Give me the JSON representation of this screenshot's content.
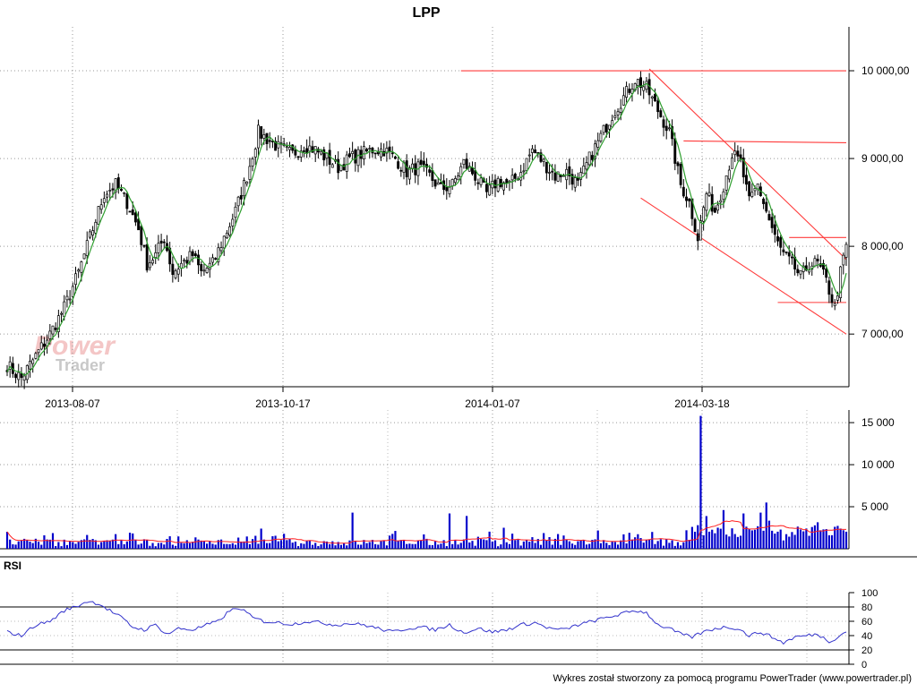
{
  "chart_data": {
    "type": "candlestick",
    "title": "LPP",
    "footer": "Wykres został stworzony za pomocą programu PowerTrader (www.powertrader.pl)",
    "watermark": {
      "line1": "Power",
      "line2": "Trader"
    },
    "x_tick_labels": [
      "2013-08-07",
      "2013-10-17",
      "2014-01-07",
      "2014-03-18"
    ],
    "price_panel": {
      "y_tick_labels": [
        "10 000,00",
        "9 000,00",
        "8 000,00",
        "7 000,00"
      ],
      "y_tick_values": [
        10000,
        9000,
        8000,
        7000
      ],
      "ylim": [
        6400,
        10500
      ],
      "series": [
        {
          "name": "LPP",
          "kind": "ohlc",
          "color_up": "#ffffff",
          "color_down": "#000000"
        },
        {
          "kind": "moving_average",
          "color": "#2e9e2e"
        }
      ],
      "close_anchors": [
        [
          0,
          6650
        ],
        [
          3,
          6550
        ],
        [
          5,
          6500
        ],
        [
          10,
          6750
        ],
        [
          15,
          7000
        ],
        [
          20,
          7300
        ],
        [
          25,
          7700
        ],
        [
          30,
          8200
        ],
        [
          34,
          8600
        ],
        [
          38,
          8700
        ],
        [
          42,
          8500
        ],
        [
          46,
          8200
        ],
        [
          49,
          7800
        ],
        [
          52,
          7900
        ],
        [
          55,
          8100
        ],
        [
          58,
          7700
        ],
        [
          61,
          7800
        ],
        [
          65,
          7900
        ],
        [
          68,
          7700
        ],
        [
          72,
          7800
        ],
        [
          76,
          8100
        ],
        [
          80,
          8400
        ],
        [
          84,
          8800
        ],
        [
          88,
          9300
        ],
        [
          92,
          9200
        ],
        [
          96,
          9100
        ],
        [
          100,
          9050
        ],
        [
          104,
          9150
        ],
        [
          108,
          9100
        ],
        [
          112,
          9000
        ],
        [
          116,
          8900
        ],
        [
          120,
          9000
        ],
        [
          124,
          9050
        ],
        [
          128,
          9100
        ],
        [
          132,
          9100
        ],
        [
          136,
          9000
        ],
        [
          140,
          8850
        ],
        [
          144,
          8900
        ],
        [
          148,
          8800
        ],
        [
          152,
          8650
        ],
        [
          156,
          8700
        ],
        [
          160,
          8950
        ],
        [
          164,
          8800
        ],
        [
          168,
          8600
        ],
        [
          172,
          8750
        ],
        [
          176,
          8700
        ],
        [
          180,
          8850
        ],
        [
          184,
          9100
        ],
        [
          188,
          8950
        ],
        [
          192,
          8800
        ],
        [
          196,
          8850
        ],
        [
          200,
          8700
        ],
        [
          204,
          9000
        ],
        [
          208,
          9250
        ],
        [
          212,
          9500
        ],
        [
          216,
          9700
        ],
        [
          220,
          9900
        ],
        [
          224,
          9800
        ],
        [
          228,
          9550
        ],
        [
          232,
          9300
        ],
        [
          236,
          8700
        ],
        [
          239,
          8500
        ],
        [
          242,
          8100
        ],
        [
          245,
          8600
        ],
        [
          248,
          8400
        ],
        [
          251,
          8700
        ],
        [
          254,
          9050
        ],
        [
          257,
          8950
        ],
        [
          260,
          8500
        ],
        [
          263,
          8700
        ],
        [
          266,
          8400
        ],
        [
          269,
          8100
        ],
        [
          272,
          7900
        ],
        [
          275,
          7800
        ],
        [
          278,
          7650
        ],
        [
          281,
          7800
        ],
        [
          284,
          7800
        ],
        [
          287,
          7600
        ],
        [
          290,
          7300
        ],
        [
          292,
          7700
        ],
        [
          294,
          8000
        ]
      ],
      "trend_lines": [
        {
          "kind": "resistance",
          "from": [
            159,
            10000
          ],
          "to": [
            294,
            10000
          ]
        },
        {
          "kind": "resistance",
          "from": [
            237,
            9200
          ],
          "to": [
            294,
            9180
          ]
        },
        {
          "kind": "channel-upper",
          "from": [
            225,
            10020
          ],
          "to": [
            294,
            7850
          ]
        },
        {
          "kind": "channel-lower",
          "from": [
            222,
            8550
          ],
          "to": [
            294,
            7000
          ]
        },
        {
          "kind": "resistance",
          "from": [
            274,
            8100
          ],
          "to": [
            294,
            8100
          ]
        },
        {
          "kind": "support",
          "from": [
            270,
            7360
          ],
          "to": [
            294,
            7360
          ]
        }
      ],
      "line_color": "#ff3b3b"
    },
    "volume_panel": {
      "y_tick_labels": [
        "15 000",
        "10 000",
        "5 000"
      ],
      "y_tick_values": [
        15000,
        10000,
        5000
      ],
      "ylim": [
        0,
        16500
      ],
      "bar_color": "#0000cc",
      "avg_color": "#ff2020",
      "spikes": [
        {
          "x": 121,
          "value": 4300
        },
        {
          "x": 155,
          "value": 4200
        },
        {
          "x": 161,
          "value": 3900
        },
        {
          "x": 174,
          "value": 2500
        },
        {
          "x": 226,
          "value": 2000
        },
        {
          "x": 238,
          "value": 2200
        },
        {
          "x": 240,
          "value": 2600
        },
        {
          "x": 243,
          "value": 15800
        },
        {
          "x": 251,
          "value": 4600
        },
        {
          "x": 258,
          "value": 4200
        },
        {
          "x": 264,
          "value": 4300
        },
        {
          "x": 266,
          "value": 5500
        },
        {
          "x": 288,
          "value": 1600
        }
      ]
    },
    "rsi_panel": {
      "label": "RSI",
      "y_tick_labels": [
        "100",
        "80",
        "60",
        "40",
        "20",
        "0"
      ],
      "y_tick_values": [
        100,
        80,
        60,
        40,
        20,
        0
      ],
      "ylim": [
        0,
        100
      ],
      "reference_lines": [
        80,
        20
      ],
      "line_color": "#3333cc",
      "anchors": [
        [
          0,
          45
        ],
        [
          5,
          40
        ],
        [
          10,
          55
        ],
        [
          15,
          60
        ],
        [
          20,
          75
        ],
        [
          25,
          82
        ],
        [
          28,
          88
        ],
        [
          32,
          85
        ],
        [
          36,
          75
        ],
        [
          40,
          65
        ],
        [
          44,
          52
        ],
        [
          48,
          48
        ],
        [
          52,
          55
        ],
        [
          56,
          42
        ],
        [
          60,
          50
        ],
        [
          65,
          48
        ],
        [
          70,
          55
        ],
        [
          74,
          60
        ],
        [
          78,
          75
        ],
        [
          82,
          78
        ],
        [
          86,
          65
        ],
        [
          90,
          60
        ],
        [
          95,
          58
        ],
        [
          100,
          56
        ],
        [
          105,
          60
        ],
        [
          110,
          58
        ],
        [
          115,
          55
        ],
        [
          120,
          57
        ],
        [
          125,
          55
        ],
        [
          130,
          50
        ],
        [
          135,
          45
        ],
        [
          140,
          50
        ],
        [
          145,
          52
        ],
        [
          150,
          48
        ],
        [
          155,
          55
        ],
        [
          160,
          44
        ],
        [
          165,
          50
        ],
        [
          170,
          45
        ],
        [
          175,
          48
        ],
        [
          180,
          55
        ],
        [
          185,
          58
        ],
        [
          190,
          50
        ],
        [
          195,
          48
        ],
        [
          200,
          55
        ],
        [
          205,
          60
        ],
        [
          210,
          65
        ],
        [
          215,
          70
        ],
        [
          220,
          75
        ],
        [
          224,
          72
        ],
        [
          228,
          55
        ],
        [
          232,
          50
        ],
        [
          236,
          42
        ],
        [
          240,
          38
        ],
        [
          244,
          45
        ],
        [
          248,
          50
        ],
        [
          252,
          52
        ],
        [
          256,
          50
        ],
        [
          260,
          40
        ],
        [
          264,
          45
        ],
        [
          268,
          38
        ],
        [
          272,
          30
        ],
        [
          276,
          38
        ],
        [
          280,
          40
        ],
        [
          284,
          42
        ],
        [
          288,
          32
        ],
        [
          291,
          38
        ],
        [
          294,
          46
        ]
      ]
    }
  }
}
